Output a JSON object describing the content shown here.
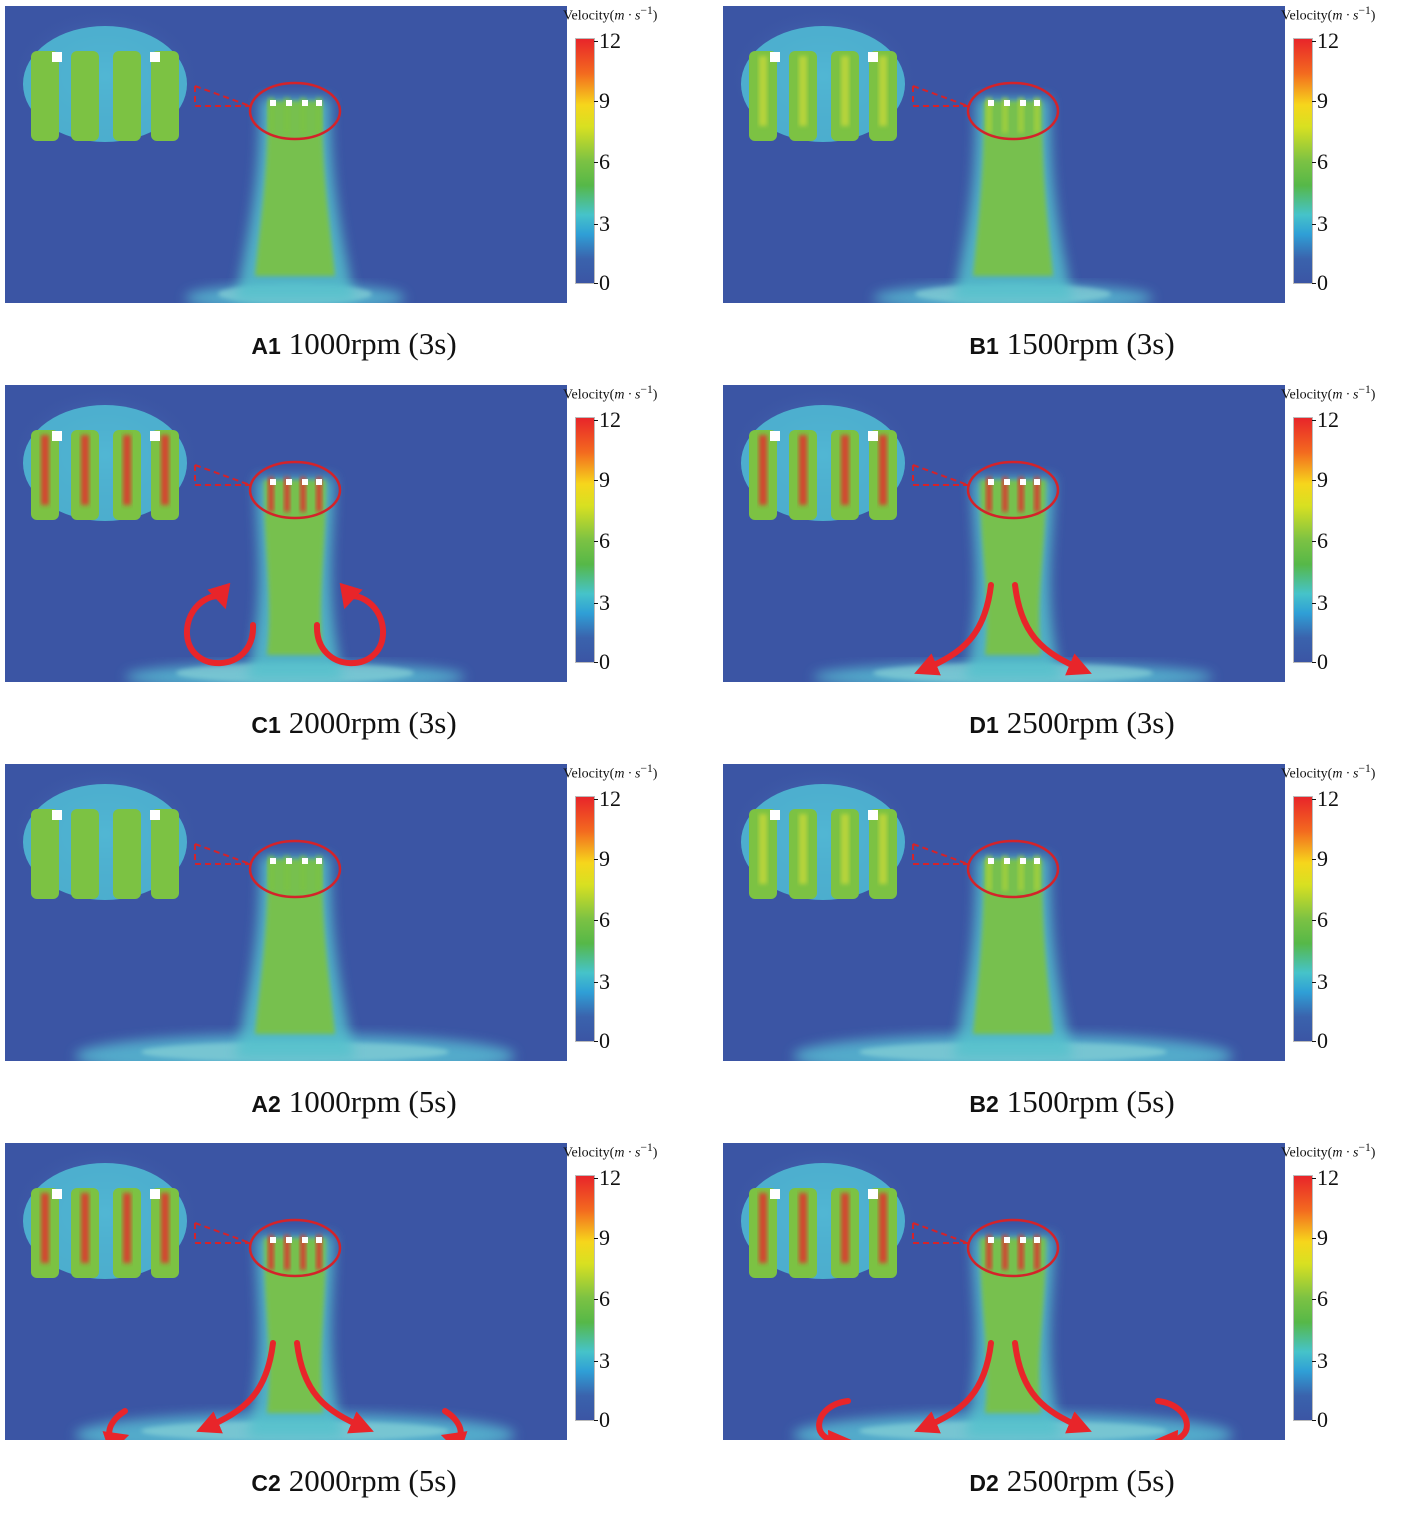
{
  "legend": {
    "title_prefix": "Velocity(",
    "title_unit": "m · s",
    "title_exp": "−1",
    "title_suffix": ")",
    "ticks": [
      "12",
      "9",
      "6",
      "3",
      "0"
    ]
  },
  "colors": {
    "background_flow": "#3b55a4",
    "jet": "#7cc243",
    "high": "#e8252a",
    "vortex_arrow": "#e8252a"
  },
  "panels": [
    {
      "id": "A1",
      "label": "A1",
      "text": "1000rpm (3s)",
      "arrows": "none"
    },
    {
      "id": "B1",
      "label": "B1",
      "text": "1500rpm (3s)",
      "arrows": "none"
    },
    {
      "id": "C1",
      "label": "C1",
      "text": "2000rpm (3s)",
      "arrows": "curl-pair"
    },
    {
      "id": "D1",
      "label": "D1",
      "text": "2500rpm (3s)",
      "arrows": "spread-pair"
    },
    {
      "id": "A2",
      "label": "A2",
      "text": "1000rpm (5s)",
      "arrows": "none"
    },
    {
      "id": "B2",
      "label": "B2",
      "text": "1500rpm (5s)",
      "arrows": "none"
    },
    {
      "id": "C2",
      "label": "C2",
      "text": "2000rpm (5s)",
      "arrows": "spread-small-vortices"
    },
    {
      "id": "D2",
      "label": "D2",
      "text": "2500rpm (5s)",
      "arrows": "spread-large-vortices"
    }
  ]
}
